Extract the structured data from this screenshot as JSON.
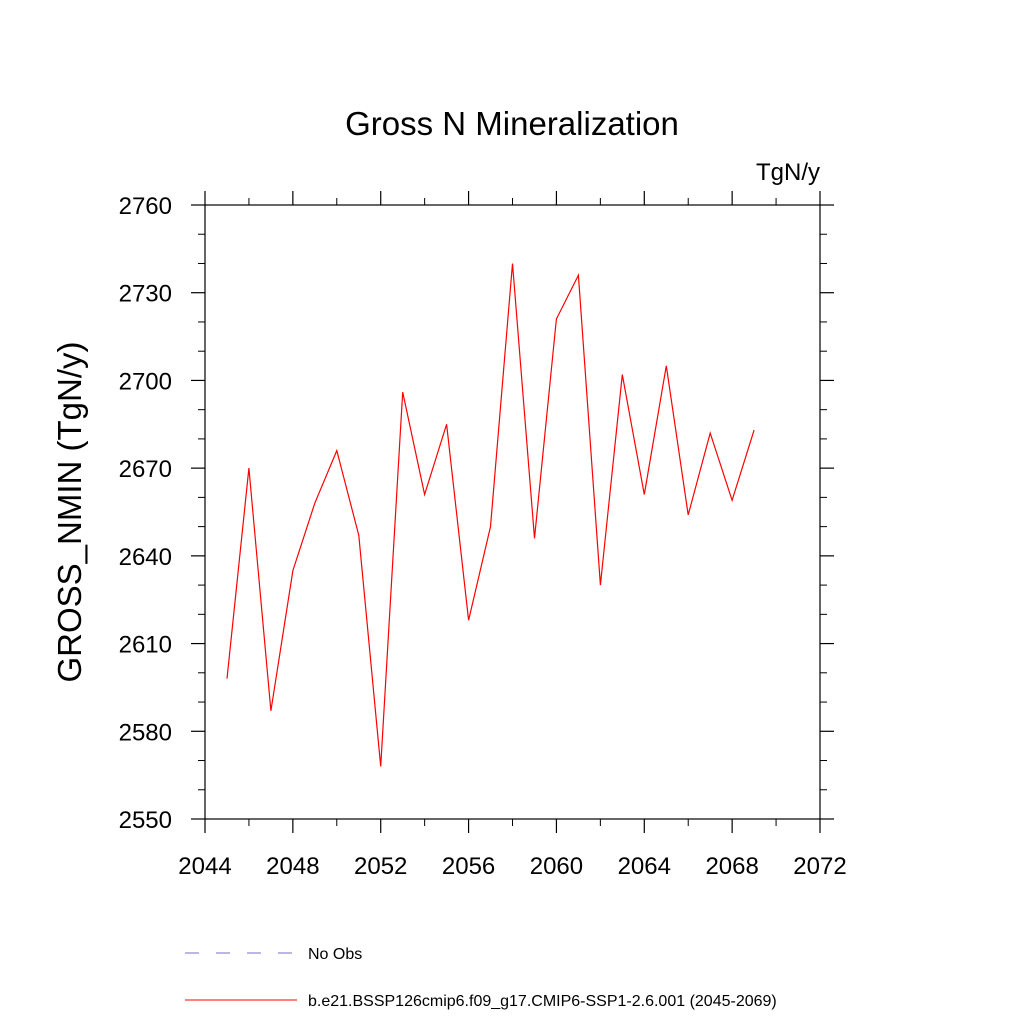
{
  "chart_data": {
    "type": "line",
    "title": "Gross N Mineralization",
    "units_label": "TgN/y",
    "ylabel": "GROSS_NMIN  (TgN/y)",
    "xlabel": "",
    "xlim": [
      2044,
      2072
    ],
    "ylim": [
      2550,
      2760
    ],
    "xticks": [
      2044,
      2048,
      2052,
      2056,
      2060,
      2064,
      2068,
      2072
    ],
    "yticks": [
      2550,
      2580,
      2610,
      2640,
      2670,
      2700,
      2730,
      2760
    ],
    "x_minor_step": 2,
    "y_minor_step": 10,
    "grid": false,
    "series": [
      {
        "name": "b.e21.BSSP126cmip6.f09_g17.CMIP6-SSP1-2.6.001 (2045-2069)",
        "color": "#ff0000",
        "style": "solid",
        "x": [
          2045,
          2046,
          2047,
          2048,
          2049,
          2050,
          2051,
          2052,
          2053,
          2054,
          2055,
          2056,
          2057,
          2058,
          2059,
          2060,
          2061,
          2062,
          2063,
          2064,
          2065,
          2066,
          2067,
          2068,
          2069
        ],
        "values": [
          2598,
          2670,
          2587,
          2635,
          2658,
          2676,
          2647,
          2568,
          2696,
          2661,
          2685,
          2618,
          2650,
          2740,
          2646,
          2721,
          2736,
          2630,
          2702,
          2661,
          2705,
          2654,
          2682,
          2659,
          2683
        ]
      }
    ],
    "legend": [
      {
        "label": "No Obs",
        "color": "#7070c0",
        "style": "dashed"
      },
      {
        "label": "b.e21.BSSP126cmip6.f09_g17.CMIP6-SSP1-2.6.001 (2045-2069)",
        "color": "#ff0000",
        "style": "solid"
      }
    ],
    "legend_position": "bottom-left"
  }
}
